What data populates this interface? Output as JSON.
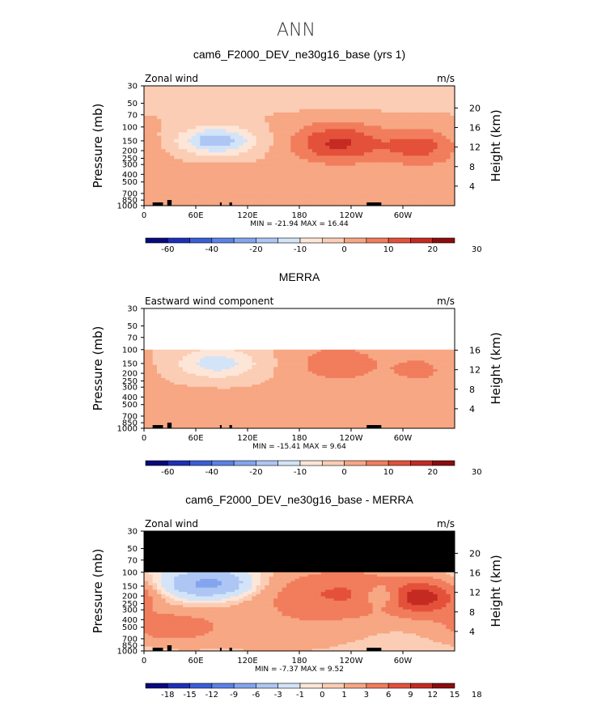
{
  "page": {
    "title": "ANN"
  },
  "colors": {
    "wind_scale": [
      "#08087e",
      "#1e2fb8",
      "#3a5ed8",
      "#5b82e6",
      "#84a5ee",
      "#aec6f3",
      "#d3e4f8",
      "#fde6d8",
      "#fbcdb5",
      "#f7a783",
      "#f17d5d",
      "#e4513a",
      "#c52a23",
      "#8c0c0c"
    ],
    "terrain": "#000000",
    "background": "#ffffff"
  },
  "chart_data": [
    {
      "type": "heatmap",
      "title": "cam6_F2000_DEV_ne30g16_base (yrs 1)",
      "left_label": "Zonal wind",
      "right_label": "m/s",
      "ylabel": "Pressure (mb)",
      "y2label": "Height (km)",
      "x_ticks": [
        "0",
        "60E",
        "120E",
        "180",
        "120W",
        "60W"
      ],
      "x_tick_lon": [
        0,
        60,
        120,
        180,
        240,
        300
      ],
      "xlim": [
        0,
        360
      ],
      "y_ticks": [
        "30",
        "50",
        "70",
        "100",
        "150",
        "200",
        "250",
        "300",
        "400",
        "500",
        "700",
        "850",
        "1000"
      ],
      "y_tick_p": [
        30,
        50,
        70,
        100,
        150,
        200,
        250,
        300,
        400,
        500,
        700,
        850,
        1000
      ],
      "ylim": [
        1000,
        30
      ],
      "height_ticks": [
        "4",
        "8",
        "12",
        "16",
        "20"
      ],
      "height_km": [
        4,
        8,
        12,
        16,
        20
      ],
      "stats": "MIN = -21.94  MAX =  16.44",
      "min": -21.94,
      "max": 16.44,
      "colorbar_labels": [
        "-60",
        "-40",
        "-20",
        "-10",
        "0",
        "10",
        "20",
        "30"
      ],
      "colorbar_levels": [
        -70,
        -60,
        -50,
        -40,
        -30,
        -20,
        -15,
        -10,
        -5,
        0,
        5,
        10,
        15,
        20,
        25,
        30
      ],
      "features": [
        {
          "lon": 85,
          "p": 150,
          "value": -19,
          "sx": 30,
          "sy": 0.28
        },
        {
          "lon": 100,
          "p": 900,
          "value": 4,
          "sx": 70,
          "sy": 0.3
        },
        {
          "lon": 225,
          "p": 160,
          "value": 16,
          "sx": 38,
          "sy": 0.42
        },
        {
          "lon": 320,
          "p": 180,
          "value": 12,
          "sx": 30,
          "sy": 0.38
        },
        {
          "lon": 180,
          "p": 40,
          "value": -3,
          "sx": 400,
          "sy": 0.25
        },
        {
          "lon": 50,
          "p": 500,
          "value": 3,
          "sx": 60,
          "sy": 0.4
        }
      ],
      "data_top_p": 30
    },
    {
      "type": "heatmap",
      "title": "MERRA",
      "left_label": "Eastward wind component",
      "right_label": "m/s",
      "ylabel": "Pressure (mb)",
      "y2label": "Height (km)",
      "x_ticks": [
        "0",
        "60E",
        "120E",
        "180",
        "120W",
        "60W"
      ],
      "x_tick_lon": [
        0,
        60,
        120,
        180,
        240,
        300
      ],
      "xlim": [
        0,
        360
      ],
      "y_ticks": [
        "30",
        "50",
        "70",
        "100",
        "150",
        "200",
        "250",
        "300",
        "400",
        "500",
        "700",
        "850",
        "1000"
      ],
      "y_tick_p": [
        30,
        50,
        70,
        100,
        150,
        200,
        250,
        300,
        400,
        500,
        700,
        850,
        1000
      ],
      "ylim": [
        1000,
        30
      ],
      "height_ticks": [
        "4",
        "8",
        "12",
        "16"
      ],
      "height_km": [
        4,
        8,
        12,
        16
      ],
      "stats": "MIN = -15.41  MAX =   9.64",
      "min": -15.41,
      "max": 9.64,
      "colorbar_labels": [
        "-60",
        "-40",
        "-20",
        "-10",
        "0",
        "10",
        "20",
        "30"
      ],
      "colorbar_levels": [
        -70,
        -60,
        -50,
        -40,
        -30,
        -20,
        -15,
        -10,
        -5,
        0,
        5,
        10,
        15,
        20,
        25,
        30
      ],
      "features": [
        {
          "lon": 85,
          "p": 150,
          "value": -13,
          "sx": 32,
          "sy": 0.3
        },
        {
          "lon": 225,
          "p": 150,
          "value": 8,
          "sx": 38,
          "sy": 0.45
        },
        {
          "lon": 320,
          "p": 180,
          "value": 6,
          "sx": 28,
          "sy": 0.35
        },
        {
          "lon": 60,
          "p": 600,
          "value": 2,
          "sx": 70,
          "sy": 0.5
        }
      ],
      "data_top_p": 100
    },
    {
      "type": "heatmap",
      "title": "cam6_F2000_DEV_ne30g16_base - MERRA",
      "left_label": "Zonal wind",
      "right_label": "m/s",
      "ylabel": "Pressure (mb)",
      "y2label": "Height (km)",
      "x_ticks": [
        "0",
        "60E",
        "120E",
        "180",
        "120W",
        "60W"
      ],
      "x_tick_lon": [
        0,
        60,
        120,
        180,
        240,
        300
      ],
      "xlim": [
        0,
        360
      ],
      "y_ticks": [
        "30",
        "50",
        "70",
        "100",
        "150",
        "200",
        "250",
        "300",
        "400",
        "500",
        "700",
        "850",
        "1000"
      ],
      "y_tick_p": [
        30,
        50,
        70,
        100,
        150,
        200,
        250,
        300,
        400,
        500,
        700,
        850,
        1000
      ],
      "ylim": [
        1000,
        30
      ],
      "height_ticks": [
        "4",
        "8",
        "12",
        "16",
        "20"
      ],
      "height_km": [
        4,
        8,
        12,
        16,
        20
      ],
      "stats": "MIN =  -7.37  MAX =   9.52",
      "min": -7.37,
      "max": 9.52,
      "colorbar_labels": [
        "-18",
        "-15",
        "-12",
        "-9",
        "-6",
        "-3",
        "-1",
        "0",
        "1",
        "3",
        "6",
        "9",
        "12",
        "15",
        "18"
      ],
      "colorbar_levels": [
        -21,
        -18,
        -15,
        -12,
        -9,
        -6,
        -3,
        -1,
        0,
        1,
        3,
        6,
        9,
        12,
        15,
        18
      ],
      "features": [
        {
          "lon": 75,
          "p": 140,
          "value": -7,
          "sx": 35,
          "sy": 0.3
        },
        {
          "lon": 230,
          "p": 180,
          "value": 6,
          "sx": 60,
          "sy": 0.5
        },
        {
          "lon": 325,
          "p": 210,
          "value": 9,
          "sx": 28,
          "sy": 0.35
        },
        {
          "lon": 275,
          "p": 200,
          "value": -5,
          "sx": 14,
          "sy": 0.25
        },
        {
          "lon": 30,
          "p": 500,
          "value": 4,
          "sx": 40,
          "sy": 0.35
        },
        {
          "lon": 160,
          "p": 500,
          "value": 2,
          "sx": 80,
          "sy": 0.6
        }
      ],
      "data_top_p": 100
    }
  ]
}
